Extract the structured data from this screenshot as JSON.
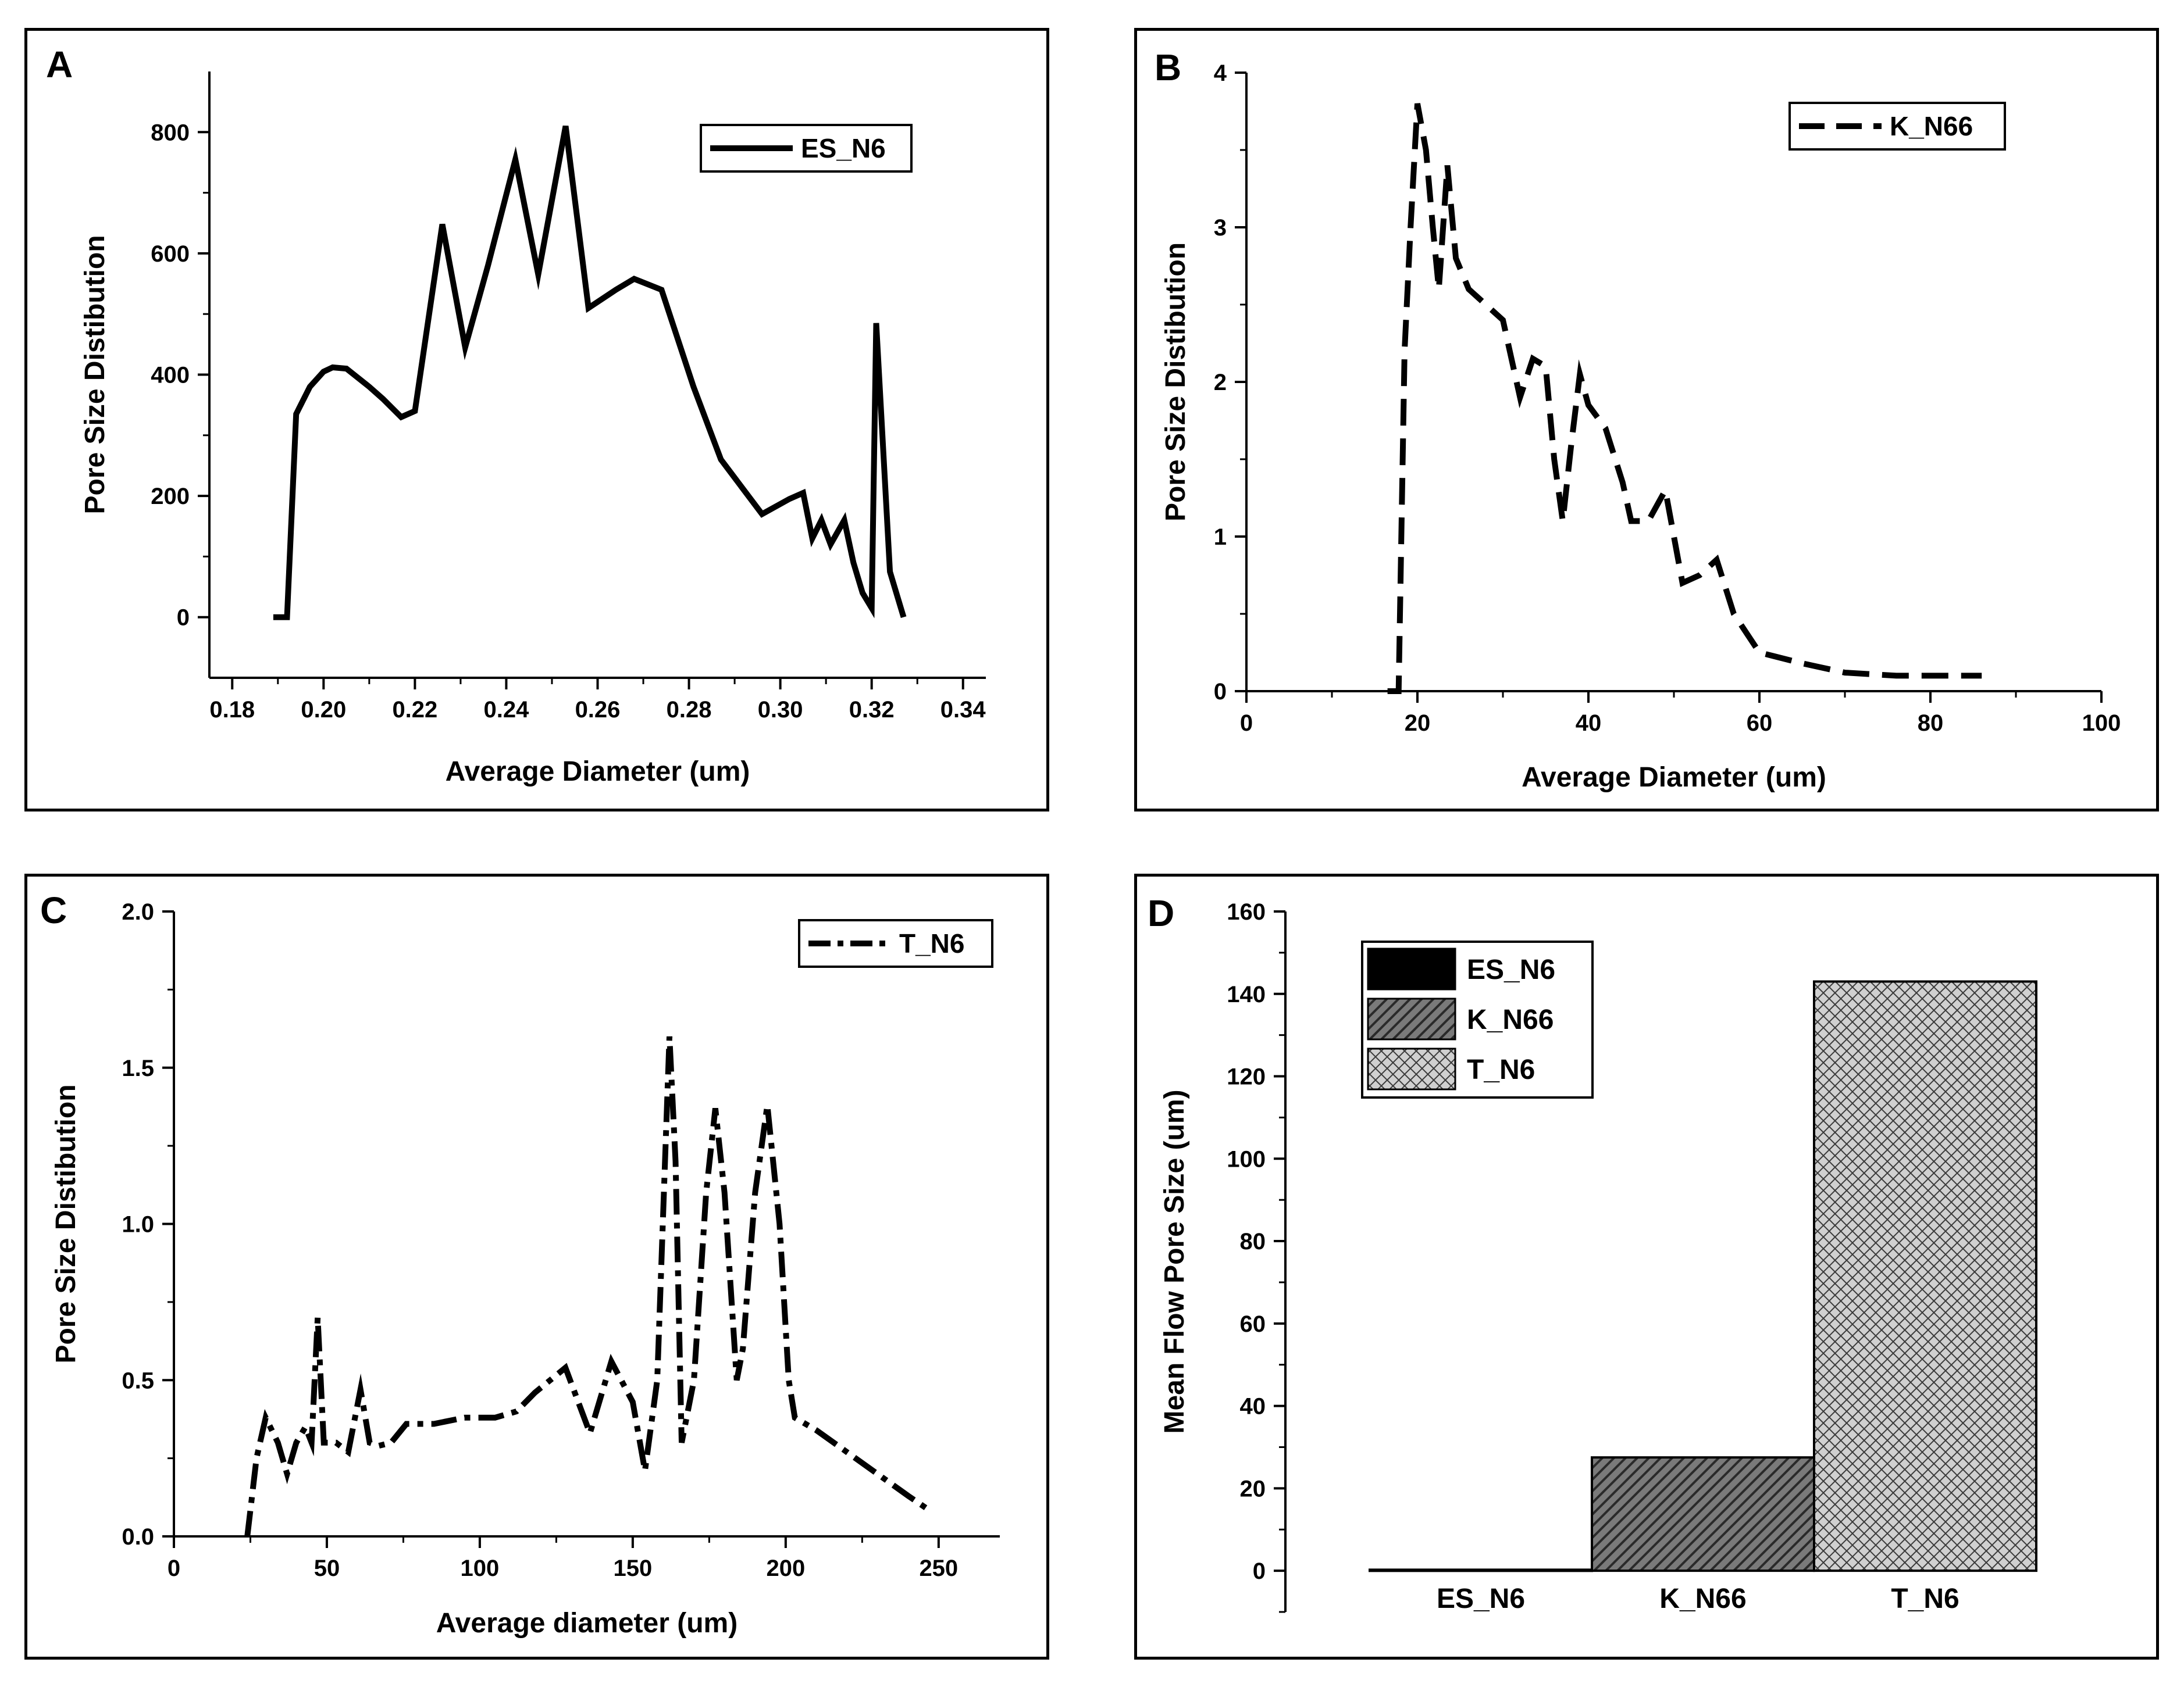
{
  "chart_data": [
    {
      "panel": "A",
      "type": "line",
      "ylabel": "Pore Size Distibution",
      "xlabel": "Average Diameter (um)",
      "xlim": [
        0.175,
        0.345
      ],
      "ylim": [
        -100,
        900
      ],
      "xticks": [
        "0.18",
        "0.20",
        "0.22",
        "0.24",
        "0.26",
        "0.28",
        "0.30",
        "0.32",
        "0.34"
      ],
      "yticks": [
        "0",
        "200",
        "400",
        "600",
        "800"
      ],
      "legend_position": "top-right",
      "series": [
        {
          "name": "ES_N6",
          "line_style": "solid",
          "points": [
            [
              0.189,
              0
            ],
            [
              0.192,
              0
            ],
            [
              0.194,
              335
            ],
            [
              0.197,
              380
            ],
            [
              0.2,
              405
            ],
            [
              0.202,
              412
            ],
            [
              0.205,
              410
            ],
            [
              0.21,
              380
            ],
            [
              0.213,
              360
            ],
            [
              0.217,
              330
            ],
            [
              0.22,
              340
            ],
            [
              0.226,
              648
            ],
            [
              0.231,
              445
            ],
            [
              0.236,
              580
            ],
            [
              0.242,
              755
            ],
            [
              0.247,
              565
            ],
            [
              0.253,
              810
            ],
            [
              0.258,
              510
            ],
            [
              0.264,
              540
            ],
            [
              0.268,
              558
            ],
            [
              0.274,
              540
            ],
            [
              0.281,
              380
            ],
            [
              0.287,
              260
            ],
            [
              0.292,
              210
            ],
            [
              0.296,
              170
            ],
            [
              0.302,
              195
            ],
            [
              0.305,
              205
            ],
            [
              0.307,
              130
            ],
            [
              0.309,
              160
            ],
            [
              0.311,
              120
            ],
            [
              0.314,
              160
            ],
            [
              0.316,
              90
            ],
            [
              0.318,
              40
            ],
            [
              0.32,
              15
            ],
            [
              0.321,
              485
            ],
            [
              0.324,
              75
            ],
            [
              0.327,
              0
            ]
          ]
        }
      ]
    },
    {
      "panel": "B",
      "type": "line",
      "ylabel": "Pore Size Distibution",
      "xlabel": "Average Diameter (um)",
      "xlim": [
        0,
        100
      ],
      "ylim": [
        0,
        4
      ],
      "xticks": [
        "0",
        "20",
        "40",
        "60",
        "80",
        "100"
      ],
      "yticks": [
        "0",
        "1",
        "2",
        "3",
        "4"
      ],
      "legend_position": "top-right",
      "series": [
        {
          "name": "K_N66",
          "line_style": "dashed",
          "points": [
            [
              16.5,
              0
            ],
            [
              17.8,
              0
            ],
            [
              18.5,
              2.2
            ],
            [
              19.2,
              3.0
            ],
            [
              20,
              3.8
            ],
            [
              21,
              3.5
            ],
            [
              21.8,
              3.0
            ],
            [
              22.5,
              2.6
            ],
            [
              23.5,
              3.4
            ],
            [
              24.5,
              2.8
            ],
            [
              26,
              2.6
            ],
            [
              28,
              2.5
            ],
            [
              30,
              2.4
            ],
            [
              32,
              1.9
            ],
            [
              33.5,
              2.15
            ],
            [
              35,
              2.1
            ],
            [
              36,
              1.5
            ],
            [
              37,
              1.1
            ],
            [
              38,
              1.6
            ],
            [
              39,
              2.05
            ],
            [
              40,
              1.85
            ],
            [
              42,
              1.7
            ],
            [
              44,
              1.35
            ],
            [
              45,
              1.1
            ],
            [
              47,
              1.1
            ],
            [
              49,
              1.3
            ],
            [
              51,
              0.7
            ],
            [
              53,
              0.75
            ],
            [
              55,
              0.85
            ],
            [
              57,
              0.5
            ],
            [
              60,
              0.25
            ],
            [
              65,
              0.18
            ],
            [
              70,
              0.12
            ],
            [
              76,
              0.1
            ],
            [
              80,
              0.1
            ],
            [
              86,
              0.1
            ]
          ]
        }
      ]
    },
    {
      "panel": "C",
      "type": "line",
      "ylabel": "Pore Size Distibution",
      "xlabel": "Average diameter (um)",
      "xlim": [
        0,
        270
      ],
      "ylim": [
        0,
        2
      ],
      "xticks": [
        "0",
        "50",
        "100",
        "150",
        "200",
        "250"
      ],
      "yticks": [
        "0.0",
        "0.5",
        "1.0",
        "1.5",
        "2.0"
      ],
      "legend_position": "top-right",
      "series": [
        {
          "name": "T_N6",
          "line_style": "dash-dot",
          "points": [
            [
              24,
              0
            ],
            [
              27,
              0.25
            ],
            [
              30,
              0.38
            ],
            [
              34,
              0.3
            ],
            [
              37,
              0.2
            ],
            [
              40,
              0.3
            ],
            [
              43,
              0.35
            ],
            [
              45,
              0.3
            ],
            [
              47,
              0.7
            ],
            [
              49,
              0.3
            ],
            [
              53,
              0.3
            ],
            [
              57,
              0.27
            ],
            [
              61,
              0.47
            ],
            [
              64,
              0.3
            ],
            [
              67,
              0.29
            ],
            [
              71,
              0.3
            ],
            [
              76,
              0.36
            ],
            [
              85,
              0.36
            ],
            [
              95,
              0.38
            ],
            [
              105,
              0.38
            ],
            [
              112,
              0.4
            ],
            [
              118,
              0.46
            ],
            [
              128,
              0.54
            ],
            [
              136,
              0.33
            ],
            [
              143,
              0.56
            ],
            [
              150,
              0.43
            ],
            [
              154,
              0.21
            ],
            [
              158,
              0.5
            ],
            [
              162,
              1.6
            ],
            [
              164,
              1.2
            ],
            [
              166,
              0.3
            ],
            [
              170,
              0.5
            ],
            [
              174,
              1.1
            ],
            [
              177,
              1.37
            ],
            [
              180,
              1.1
            ],
            [
              184,
              0.5
            ],
            [
              186,
              0.6
            ],
            [
              190,
              1.1
            ],
            [
              194,
              1.38
            ],
            [
              198,
              1.0
            ],
            [
              201,
              0.5
            ],
            [
              203,
              0.38
            ],
            [
              210,
              0.34
            ],
            [
              220,
              0.27
            ],
            [
              230,
              0.2
            ],
            [
              240,
              0.13
            ],
            [
              246,
              0.09
            ]
          ]
        }
      ]
    },
    {
      "panel": "D",
      "type": "bar",
      "ylabel": "Mean Flow Pore Size (um)",
      "xlabel": "",
      "ylim": [
        -10,
        160
      ],
      "yticks": [
        "0",
        "20",
        "40",
        "60",
        "80",
        "100",
        "120",
        "140",
        "160"
      ],
      "categories": [
        "ES_N6",
        "K_N66",
        "T_N6"
      ],
      "values": [
        0.25,
        27.5,
        143
      ],
      "fills": [
        "solid-black",
        "diagonal-hatch",
        "crosshatch"
      ],
      "legend_position": "top-left",
      "legend": [
        "ES_N6",
        "K_N66",
        "T_N6"
      ]
    }
  ]
}
